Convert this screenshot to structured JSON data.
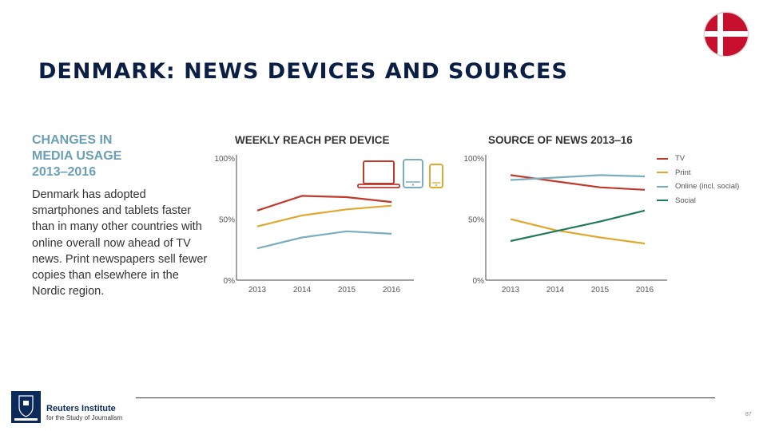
{
  "slide": {
    "title": "DENMARK: NEWS DEVICES AND SOURCES",
    "page_number": "87",
    "flag_icon": "denmark-flag-icon",
    "colors": {
      "title": "#0b1f44",
      "heading_accent": "#6a9fb5",
      "flag_red": "#c8102e"
    }
  },
  "sidebar": {
    "heading_lines": [
      "CHANGES IN",
      "MEDIA USAGE",
      "2013‒2016"
    ],
    "body": "Denmark has adopted smartphones and tablets faster than in many other countries with online overall now ahead of TV news. Print newspapers sell fewer copies than elsewhere in the Nordic region."
  },
  "footer": {
    "org_name": "Reuters Institute",
    "org_sub": "for the Study of Journalism",
    "crest_icon": "oxford-crest-icon"
  },
  "chart_data": [
    {
      "type": "line",
      "title": "WEEKLY REACH PER DEVICE",
      "x": [
        "2013",
        "2014",
        "2015",
        "2016"
      ],
      "ylim": [
        0,
        100
      ],
      "yticks": [
        "0%",
        "50%",
        "100%"
      ],
      "grid": false,
      "legend": "icons top-right",
      "series": [
        {
          "icon": "laptop-icon",
          "color": "#c0392b",
          "values": [
            57,
            69,
            68,
            64
          ]
        },
        {
          "icon": "smartphone-icon",
          "color": "#e0a830",
          "values": [
            44,
            53,
            58,
            61
          ]
        },
        {
          "icon": "tablet-icon",
          "color": "#7aaebf",
          "values": [
            26,
            35,
            40,
            38
          ]
        }
      ]
    },
    {
      "type": "line",
      "title": "SOURCE OF NEWS 2013‒16",
      "x": [
        "2013",
        "2014",
        "2015",
        "2016"
      ],
      "ylim": [
        0,
        100
      ],
      "yticks": [
        "0%",
        "50%",
        "100%"
      ],
      "grid": false,
      "legend": "right",
      "series": [
        {
          "name": "TV",
          "color": "#c0392b",
          "values": [
            86,
            81,
            76,
            74
          ]
        },
        {
          "name": "Print",
          "color": "#e0a830",
          "values": [
            50,
            41,
            35,
            30
          ]
        },
        {
          "name": "Online (incl. social)",
          "color": "#7aaebf",
          "values": [
            82,
            84,
            86,
            85
          ]
        },
        {
          "name": "Social",
          "color": "#1f7a5c",
          "values": [
            32,
            40,
            48,
            57
          ]
        }
      ]
    }
  ]
}
